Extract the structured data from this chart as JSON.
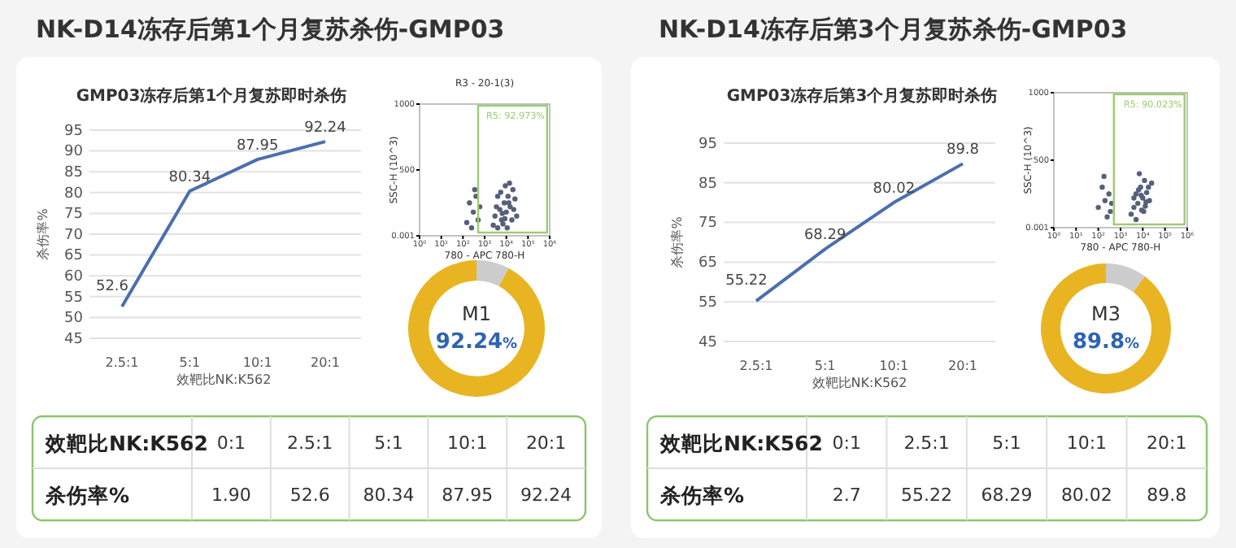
{
  "chart_data": [
    {
      "type": "other",
      "title": "NK-D14冻存后第1个月复苏杀伤-GMP03"
    },
    {
      "type": "line",
      "title": "GMP03冻存后第1个月复苏即时杀伤",
      "xlabel": "效靶比NK:K562",
      "ylabel": "杀伤率%",
      "categories": [
        "2.5:1",
        "5:1",
        "10:1",
        "20:1"
      ],
      "series": [
        {
          "color": "#4a6fae",
          "values": [
            52.6,
            80.34,
            87.95,
            92.24
          ]
        }
      ],
      "ylim": [
        45,
        95
      ],
      "yticks": [
        45,
        50,
        55,
        60,
        65,
        70,
        75,
        80,
        85,
        90,
        95
      ],
      "grid": "y",
      "data_labels": true,
      "marker": "none"
    },
    {
      "type": "scatter",
      "title": "R3 - 20-1(3)",
      "xlabel": "780 - APC 780-H",
      "ylabel": "SSC-H (10^3)",
      "log": "x",
      "xlim": [
        1,
        1000000
      ],
      "marker": "circle",
      "x": [
        2500,
        3000,
        4000,
        5000,
        6000,
        8000,
        10000,
        12000,
        15000,
        20000,
        25000,
        30000,
        4000,
        7000,
        9000,
        18000,
        3500,
        5500,
        11000,
        14000,
        22000,
        6500,
        8500,
        13000,
        150,
        200,
        300,
        400,
        250,
        500,
        600,
        350
      ],
      "series": [
        {
          "color": "#56607a",
          "values": [
            80,
            150,
            60,
            200,
            120,
            250,
            180,
            300,
            220,
            350,
            280,
            150,
            300,
            90,
            380,
            120,
            220,
            330,
            60,
            400,
            200,
            170,
            130,
            250,
            100,
            250,
            180,
            300,
            60,
            120,
            220,
            350
          ]
        }
      ],
      "xticks": [
        {
          "value": 1,
          "label": "10⁰"
        },
        {
          "value": 10,
          "label": "10¹"
        },
        {
          "value": 100,
          "label": "10²"
        },
        {
          "value": 1000,
          "label": "10³"
        },
        {
          "value": 10000,
          "label": "10⁴"
        },
        {
          "value": 100000,
          "label": "10⁵"
        },
        {
          "value": 1000000,
          "label": "10⁶"
        }
      ],
      "ylim": [
        0.001,
        1000
      ],
      "yticks": [
        0.001,
        500,
        1000
      ],
      "annotations": [
        "R5: 92.973%"
      ]
    },
    {
      "type": "donut",
      "title": "M1",
      "categories": [
        null,
        null
      ],
      "values": [
        92.24,
        7.76
      ],
      "colors": [
        "#e8b422",
        "#cccccc"
      ],
      "value_labels": [
        "92.24%",
        null
      ]
    },
    {
      "type": "other",
      "xlabel": "效靶比NK:K562",
      "ylabel": "杀伤率%",
      "categories": [
        "0:1",
        "2.5:1",
        "5:1",
        "10:1",
        "20:1"
      ],
      "value_labels": [
        "1.90",
        "52.6",
        "80.34",
        "87.95",
        "92.24"
      ]
    },
    {
      "type": "other",
      "title": "NK-D14冻存后第3个月复苏杀伤-GMP03"
    },
    {
      "type": "line",
      "title": "GMP03冻存后第3个月复苏即时杀伤",
      "xlabel": "效靶比NK:K562",
      "ylabel": "杀伤率%",
      "categories": [
        "2.5:1",
        "5:1",
        "10:1",
        "20:1"
      ],
      "series": [
        {
          "color": "#4a6fae",
          "values": [
            55.22,
            68.29,
            80.02,
            89.8
          ]
        }
      ],
      "ylim": [
        45,
        95
      ],
      "yticks": [
        45,
        55,
        65,
        75,
        85,
        95
      ],
      "grid": "y",
      "data_labels": true,
      "marker": "none"
    },
    {
      "type": "scatter",
      "xlabel": "780 - APC 780-H",
      "ylabel": "SSC-H (10^3)",
      "log": "x",
      "xlim": [
        1,
        1000000
      ],
      "marker": "circle",
      "x": [
        3000,
        4000,
        5000,
        6000,
        8000,
        10000,
        12000,
        15000,
        20000,
        25000,
        5000,
        7000,
        9000,
        4000,
        6500,
        11000,
        14000,
        8500,
        13000,
        18000,
        100,
        150,
        200,
        300,
        250,
        400,
        180,
        350
      ],
      "series": [
        {
          "color": "#56607a",
          "values": [
            100,
            150,
            250,
            180,
            300,
            220,
            350,
            260,
            200,
            330,
            60,
            400,
            130,
            220,
            280,
            120,
            190,
            240,
            160,
            300,
            150,
            300,
            200,
            250,
            80,
            180,
            380,
            120
          ]
        }
      ],
      "xticks": [
        {
          "value": 1,
          "label": "10⁰"
        },
        {
          "value": 10,
          "label": "10¹"
        },
        {
          "value": 100,
          "label": "10²"
        },
        {
          "value": 1000,
          "label": "10³"
        },
        {
          "value": 10000,
          "label": "10⁴"
        },
        {
          "value": 100000,
          "label": "10⁵"
        },
        {
          "value": 1000000,
          "label": "10⁶"
        }
      ],
      "ylim": [
        0.001,
        1000
      ],
      "yticks": [
        0.001,
        500,
        1000
      ],
      "annotations": [
        "R5: 90.023%"
      ]
    },
    {
      "type": "donut",
      "title": "M3",
      "categories": [
        null,
        null
      ],
      "values": [
        89.8,
        10.2
      ],
      "colors": [
        "#e8b422",
        "#cccccc"
      ],
      "value_labels": [
        "89.8%",
        null
      ]
    },
    {
      "type": "other",
      "xlabel": "效靶比NK:K562",
      "ylabel": "杀伤率%",
      "categories": [
        "0:1",
        "2.5:1",
        "5:1",
        "10:1",
        "20:1"
      ],
      "value_labels": [
        "2.7",
        "55.22",
        "68.29",
        "80.02",
        "89.8"
      ]
    }
  ]
}
